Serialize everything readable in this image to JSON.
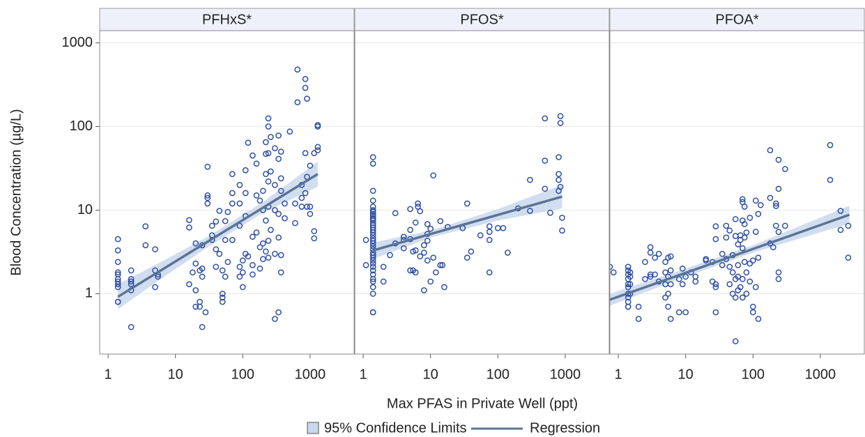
{
  "y_label": "Blood Concentration (µg/L)",
  "x_label": "Max PFAS in Private Well (ppt)",
  "legend": [
    {
      "label": "95% Confidence Limits",
      "color": "#c9d8ec"
    },
    {
      "label": "Regression",
      "color": "#5b7395"
    }
  ],
  "chart_data": [
    {
      "type": "scatter",
      "title": "PFHxS*",
      "log_x": true,
      "log_y": true,
      "grid": true,
      "color": "#2e4fa3",
      "xlim": [
        0.75,
        4500
      ],
      "xticks": [
        1,
        10,
        100,
        1000
      ],
      "ylim": [
        0.19,
        1400
      ],
      "yticks": [
        1000,
        100,
        10,
        1
      ],
      "x": [
        1.4,
        1.4,
        1.4,
        1.4,
        1.4,
        1.4,
        1.4,
        1.4,
        1.4,
        1.4,
        1.4,
        2.2,
        2.2,
        2.2,
        2.2,
        2.2,
        2.2,
        3.6,
        3.6,
        5,
        5,
        5,
        5.5,
        5.5,
        16,
        16,
        16,
        18,
        20,
        20,
        20,
        20,
        23,
        23,
        23,
        25,
        25,
        25,
        25,
        28,
        30,
        30,
        30,
        30,
        35,
        35,
        35,
        40,
        40,
        40,
        45,
        45,
        50,
        50,
        50,
        50,
        55,
        55,
        55,
        60,
        60,
        70,
        70,
        70,
        70,
        90,
        90,
        90,
        90,
        90,
        100,
        100,
        100,
        110,
        110,
        110,
        110,
        120,
        120,
        140,
        140,
        140,
        140,
        160,
        160,
        160,
        180,
        180,
        180,
        200,
        200,
        200,
        200,
        220,
        220,
        220,
        220,
        220,
        240,
        240,
        240,
        240,
        240,
        240,
        240,
        260,
        260,
        260,
        300,
        300,
        300,
        300,
        300,
        340,
        340,
        340,
        340,
        340,
        370,
        370,
        370,
        370,
        370,
        420,
        420,
        500,
        600,
        600,
        650,
        650,
        750,
        750,
        750,
        850,
        850,
        850,
        850,
        900,
        900,
        900,
        1000,
        1000,
        1000,
        1150,
        1150,
        1150,
        1300,
        1300,
        1300,
        1300
      ],
      "y": [
        4.5,
        3.3,
        2.4,
        1.8,
        1.7,
        1.5,
        1.4,
        1.3,
        1.2,
        0.8,
        0.8,
        1.9,
        1.5,
        1.4,
        1.3,
        1.1,
        0.4,
        6.4,
        3.8,
        1.9,
        1.2,
        3.4,
        1.6,
        1.7,
        7.6,
        6.2,
        1.3,
        1.8,
        4,
        2.3,
        1.1,
        0.7,
        1.9,
        0.8,
        0.7,
        3.8,
        2,
        1.6,
        0.4,
        0.6,
        33,
        15,
        14,
        12,
        6.5,
        4.4,
        5,
        7.3,
        3.4,
        2.1,
        9.8,
        3,
        1.9,
        1,
        0.8,
        0.9,
        7.4,
        4.4,
        1.6,
        9.5,
        2.4,
        27,
        16,
        12,
        4.4,
        20,
        12,
        6.5,
        2.1,
        1.6,
        2.5,
        1.2,
        1.8,
        30,
        16,
        8.5,
        3,
        64,
        2.8,
        45,
        4.8,
        2.2,
        1.7,
        36,
        15,
        5.4,
        13,
        3.6,
        2,
        17,
        10,
        4,
        2.6,
        65,
        47,
        27,
        7.5,
        3.2,
        125,
        100,
        48,
        22,
        11,
        4.3,
        2.7,
        75,
        29,
        5.8,
        55,
        20,
        10,
        3,
        0.5,
        78,
        41,
        9,
        4.7,
        0.6,
        50,
        24,
        17,
        2.9,
        1.8,
        8,
        12,
        87,
        7,
        12,
        480,
        195,
        20,
        14,
        11,
        370,
        290,
        48,
        16,
        215,
        25,
        11,
        34,
        11,
        9,
        48,
        5.6,
        4.6,
        100,
        104,
        52,
        57
      ],
      "fit": {
        "x": [
          1.4,
          1300
        ],
        "y": [
          0.92,
          27
        ]
      },
      "band": {
        "x": [
          1.4,
          5,
          30,
          200,
          1300
        ],
        "lower": [
          0.65,
          1.35,
          3.6,
          9.3,
          19
        ],
        "upper": [
          1.3,
          2.2,
          4.8,
          12.5,
          38
        ]
      }
    },
    {
      "type": "scatter",
      "title": "PFOS*",
      "log_x": true,
      "log_y": true,
      "grid": true,
      "color": "#2e4fa3",
      "xlim": [
        0.75,
        4500
      ],
      "xticks": [
        1,
        10,
        100,
        1000
      ],
      "ylim": [
        0.19,
        1400
      ],
      "yticks": [
        1000,
        100,
        10,
        1
      ],
      "x": [
        1.4,
        1.4,
        1.4,
        1.4,
        1.4,
        1.4,
        1.4,
        1.4,
        1.4,
        1.4,
        1.4,
        1.4,
        1.4,
        1.4,
        1.4,
        1.4,
        1.4,
        1.4,
        1.4,
        1.4,
        1.4,
        1.4,
        1.4,
        1.4,
        1.4,
        1.4,
        1.4,
        1.4,
        1.4,
        1.4,
        1.4,
        1.4,
        1.4,
        1.4,
        1.4,
        1.4,
        1.4,
        1.1,
        1.1,
        2,
        2,
        2.5,
        3,
        3,
        4,
        4,
        4,
        5,
        5,
        5,
        5,
        5.5,
        5.5,
        6,
        6,
        6,
        6.5,
        6.5,
        7,
        7,
        8,
        8,
        8,
        9,
        9,
        9,
        9,
        10,
        10,
        11,
        11,
        12,
        14,
        14,
        15,
        16,
        18,
        30,
        35,
        35,
        40,
        55,
        75,
        75,
        75,
        75,
        100,
        120,
        140,
        200,
        300,
        300,
        500,
        500,
        500,
        600,
        800,
        800,
        800,
        800,
        850,
        850,
        850,
        900,
        900
      ],
      "y": [
        43,
        36,
        17,
        13,
        11,
        10,
        9.5,
        9,
        8.5,
        8,
        7.8,
        7.5,
        7,
        6.6,
        6.2,
        5.8,
        5.4,
        5,
        4.6,
        4.3,
        4,
        3.7,
        3.4,
        3.1,
        2.9,
        2.7,
        2.5,
        2.3,
        2.1,
        1.9,
        1.7,
        1.5,
        1.4,
        1.2,
        1,
        0.6,
        0.6,
        4.4,
        2.2,
        2.1,
        1.4,
        2.9,
        4,
        9.2,
        4.4,
        3.5,
        4.8,
        10.3,
        5.8,
        4.5,
        1.9,
        3.2,
        1.9,
        7.1,
        3.3,
        1.8,
        12,
        11,
        9.7,
        2.8,
        3.8,
        3.1,
        1.1,
        6.8,
        5.2,
        4.3,
        2.5,
        6,
        1.4,
        26,
        2.7,
        1.8,
        7.4,
        2.2,
        2.2,
        1.2,
        6.3,
        6.1,
        12,
        2.7,
        3.2,
        5,
        6.4,
        5.5,
        4.4,
        1.8,
        6.1,
        6.1,
        3.1,
        10.5,
        23,
        9.8,
        125,
        39,
        18,
        9.3,
        43,
        27,
        23,
        17,
        133,
        110,
        19,
        8.1,
        5.7
      ],
      "fit": {
        "x": [
          1.4,
          900
        ],
        "y": [
          3.3,
          14.5
        ]
      },
      "band": {
        "x": [
          1.4,
          10,
          100,
          900
        ],
        "lower": [
          2.6,
          4.7,
          7.5,
          10.5
        ],
        "upper": [
          4.1,
          5.7,
          10.3,
          20
        ]
      }
    },
    {
      "type": "scatter",
      "title": "PFOA*",
      "log_x": true,
      "log_y": true,
      "grid": true,
      "color": "#2e4fa3",
      "xlim": [
        0.75,
        4500
      ],
      "xticks": [
        1,
        10,
        100,
        1000
      ],
      "ylim": [
        0.19,
        1400
      ],
      "yticks": [
        1000,
        100,
        10,
        1
      ],
      "x": [
        0.75,
        0.85,
        1.4,
        1.4,
        1.4,
        1.4,
        1.4,
        1.4,
        1.4,
        1.4,
        1.4,
        1.4,
        1.4,
        1.5,
        1.5,
        1.5,
        1.5,
        2,
        2,
        2.5,
        2.5,
        3,
        3,
        3,
        3,
        3.5,
        3.5,
        4,
        4,
        5,
        5,
        5,
        5,
        5.5,
        5.5,
        5.5,
        5.5,
        6,
        6,
        6,
        6,
        8,
        8,
        9,
        9,
        10,
        10,
        12,
        14,
        14,
        20,
        20,
        25,
        25,
        28,
        28,
        28,
        28,
        28,
        35,
        35,
        40,
        40,
        40,
        45,
        45,
        45,
        50,
        50,
        50,
        55,
        55,
        55,
        55,
        55,
        60,
        60,
        60,
        60,
        65,
        65,
        65,
        70,
        70,
        70,
        70,
        70,
        70,
        75,
        75,
        75,
        75,
        80,
        80,
        80,
        90,
        90,
        90,
        100,
        100,
        100,
        110,
        110,
        110,
        120,
        120,
        120,
        130,
        180,
        180,
        180,
        200,
        220,
        220,
        220,
        240,
        240,
        240,
        240,
        240,
        300,
        300,
        1400,
        1400,
        2000,
        2000,
        2600,
        2600
      ],
      "y": [
        2.1,
        1.8,
        2.1,
        1.9,
        1.7,
        1.5,
        1.3,
        1.2,
        1,
        0.9,
        0.8,
        0.7,
        0.7,
        1.8,
        1.6,
        1.3,
        1,
        0.5,
        0.7,
        1.5,
        2.4,
        3.6,
        3.1,
        1.7,
        1.6,
        2.7,
        1.7,
        3,
        1.4,
        2.4,
        1.8,
        1.3,
        0.9,
        2.7,
        1.6,
        1,
        0.7,
        2.8,
        1.9,
        1.3,
        0.5,
        1.5,
        0.6,
        2,
        1.3,
        1.6,
        0.6,
        1.8,
        1.6,
        1.4,
        2.6,
        2.5,
        2.4,
        1.4,
        6.4,
        4.5,
        1.3,
        1.2,
        0.6,
        3,
        2.2,
        6.5,
        4.7,
        2.6,
        5.7,
        2.1,
        1.3,
        2.9,
        1.8,
        1,
        7.8,
        4.9,
        1.5,
        0.9,
        0.27,
        3.9,
        2.2,
        1.6,
        1.1,
        5,
        4.4,
        1.2,
        13.5,
        12.5,
        7.5,
        3.5,
        1.5,
        0.9,
        11,
        6.8,
        4.7,
        2.4,
        5.4,
        1.8,
        1,
        8.1,
        2.3,
        1.4,
        2.5,
        0.6,
        0.7,
        13,
        5.5,
        1.2,
        9,
        2.7,
        0.5,
        11.5,
        52,
        14,
        4,
        3.6,
        12,
        11.2,
        6.5,
        40,
        18,
        5.5,
        1.8,
        1.5,
        31,
        6.5,
        60,
        23,
        9.8,
        5.8,
        6.5,
        2.7
      ],
      "fit": {
        "x": [
          0.75,
          2700
        ],
        "y": [
          0.85,
          8.8
        ]
      },
      "band": {
        "x": [
          0.75,
          10,
          100,
          2700
        ],
        "lower": [
          0.72,
          1.6,
          3.1,
          6.9
        ],
        "upper": [
          1.0,
          2.0,
          3.8,
          11.3
        ]
      }
    }
  ]
}
